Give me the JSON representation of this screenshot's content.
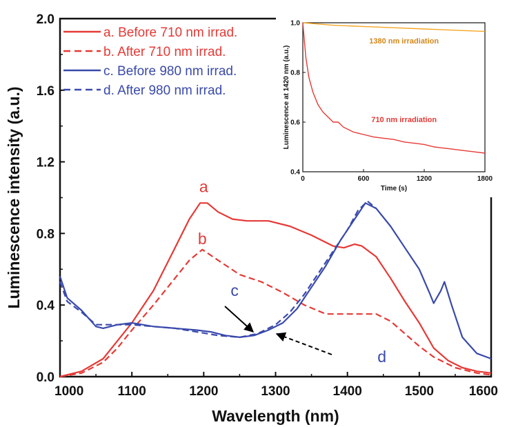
{
  "colors": {
    "red": "#e53935",
    "blue": "#3949ab",
    "orange": "#f5a623",
    "axis": "#111111"
  },
  "chart_data": [
    {
      "type": "line",
      "xlabel": "Wavelength (nm)",
      "ylabel": "Luminescence intensity (a.u.)",
      "xlim": [
        1000,
        1600
      ],
      "ylim": [
        0,
        2.0
      ],
      "x_ticks": [
        "1000",
        "1100",
        "1200",
        "1300",
        "1400",
        "1500",
        "1600"
      ],
      "y_ticks": [
        "0.0",
        "0.4",
        "0.8",
        "1.2",
        "1.6",
        "2.0"
      ],
      "legend_position": "top-left",
      "series": [
        {
          "name": "a. Before 710 nm irrad.",
          "color": "red",
          "dash": "solid",
          "points": [
            [
              1000,
              0.0
            ],
            [
              1030,
              0.03
            ],
            [
              1060,
              0.1
            ],
            [
              1080,
              0.2
            ],
            [
              1100,
              0.3
            ],
            [
              1130,
              0.48
            ],
            [
              1160,
              0.72
            ],
            [
              1180,
              0.88
            ],
            [
              1195,
              0.97
            ],
            [
              1205,
              0.97
            ],
            [
              1220,
              0.92
            ],
            [
              1240,
              0.88
            ],
            [
              1260,
              0.87
            ],
            [
              1290,
              0.87
            ],
            [
              1320,
              0.84
            ],
            [
              1350,
              0.79
            ],
            [
              1380,
              0.73
            ],
            [
              1395,
              0.72
            ],
            [
              1410,
              0.74
            ],
            [
              1420,
              0.73
            ],
            [
              1440,
              0.67
            ],
            [
              1460,
              0.55
            ],
            [
              1480,
              0.42
            ],
            [
              1500,
              0.3
            ],
            [
              1520,
              0.16
            ],
            [
              1540,
              0.09
            ],
            [
              1560,
              0.05
            ],
            [
              1580,
              0.03
            ],
            [
              1600,
              0.02
            ]
          ]
        },
        {
          "name": "b. After 710 nm irrad.",
          "color": "red",
          "dash": "dashed",
          "points": [
            [
              1000,
              0.0
            ],
            [
              1030,
              0.02
            ],
            [
              1060,
              0.08
            ],
            [
              1080,
              0.16
            ],
            [
              1100,
              0.26
            ],
            [
              1130,
              0.4
            ],
            [
              1160,
              0.55
            ],
            [
              1180,
              0.65
            ],
            [
              1198,
              0.71
            ],
            [
              1220,
              0.65
            ],
            [
              1250,
              0.57
            ],
            [
              1280,
              0.53
            ],
            [
              1310,
              0.47
            ],
            [
              1340,
              0.4
            ],
            [
              1370,
              0.35
            ],
            [
              1400,
              0.35
            ],
            [
              1420,
              0.35
            ],
            [
              1440,
              0.35
            ],
            [
              1460,
              0.31
            ],
            [
              1480,
              0.24
            ],
            [
              1500,
              0.17
            ],
            [
              1520,
              0.11
            ],
            [
              1550,
              0.05
            ],
            [
              1580,
              0.02
            ],
            [
              1600,
              0.01
            ]
          ]
        },
        {
          "name": "c. Before 980 nm irrad.",
          "color": "blue",
          "dash": "solid",
          "points": [
            [
              1000,
              0.56
            ],
            [
              1010,
              0.44
            ],
            [
              1030,
              0.37
            ],
            [
              1050,
              0.28
            ],
            [
              1060,
              0.27
            ],
            [
              1080,
              0.29
            ],
            [
              1100,
              0.3
            ],
            [
              1130,
              0.28
            ],
            [
              1160,
              0.27
            ],
            [
              1190,
              0.26
            ],
            [
              1210,
              0.25
            ],
            [
              1230,
              0.23
            ],
            [
              1250,
              0.22
            ],
            [
              1270,
              0.23
            ],
            [
              1290,
              0.26
            ],
            [
              1310,
              0.3
            ],
            [
              1330,
              0.38
            ],
            [
              1350,
              0.5
            ],
            [
              1370,
              0.62
            ],
            [
              1390,
              0.76
            ],
            [
              1410,
              0.88
            ],
            [
              1425,
              0.97
            ],
            [
              1440,
              0.94
            ],
            [
              1460,
              0.84
            ],
            [
              1480,
              0.72
            ],
            [
              1500,
              0.6
            ],
            [
              1515,
              0.46
            ],
            [
              1520,
              0.41
            ],
            [
              1530,
              0.48
            ],
            [
              1535,
              0.53
            ],
            [
              1545,
              0.4
            ],
            [
              1560,
              0.22
            ],
            [
              1580,
              0.13
            ],
            [
              1600,
              0.1
            ]
          ]
        },
        {
          "name": "d. After 980 nm irrad.",
          "color": "blue",
          "dash": "dashed",
          "points": [
            [
              1000,
              0.53
            ],
            [
              1010,
              0.42
            ],
            [
              1030,
              0.36
            ],
            [
              1050,
              0.29
            ],
            [
              1070,
              0.29
            ],
            [
              1100,
              0.29
            ],
            [
              1130,
              0.28
            ],
            [
              1160,
              0.27
            ],
            [
              1190,
              0.25
            ],
            [
              1220,
              0.23
            ],
            [
              1250,
              0.22
            ],
            [
              1275,
              0.24
            ],
            [
              1300,
              0.29
            ],
            [
              1320,
              0.36
            ],
            [
              1340,
              0.46
            ],
            [
              1360,
              0.58
            ],
            [
              1380,
              0.7
            ],
            [
              1400,
              0.82
            ],
            [
              1415,
              0.93
            ],
            [
              1428,
              0.98
            ],
            [
              1440,
              0.94
            ]
          ]
        }
      ],
      "annotations": [
        {
          "text": "a",
          "x": 1200,
          "y": 1.03,
          "color": "red"
        },
        {
          "text": "b",
          "x": 1198,
          "y": 0.74,
          "color": "red"
        },
        {
          "text": "c",
          "x": 1243,
          "y": 0.45,
          "color": "blue"
        },
        {
          "text": "d",
          "x": 1448,
          "y": 0.08,
          "color": "blue"
        }
      ]
    },
    {
      "type": "line",
      "position": "top-right inset",
      "xlabel": "Time (s)",
      "ylabel": "Luminescence at 1420 nm (a.u.)",
      "xlim": [
        0,
        1800
      ],
      "ylim": [
        0.4,
        1.0
      ],
      "x_ticks": [
        "0",
        "600",
        "1200",
        "1800"
      ],
      "y_ticks": [
        "0.4",
        "0.6",
        "0.8",
        "1.0"
      ],
      "series": [
        {
          "label": "1380 nm irradiation",
          "color": "orange",
          "points": [
            [
              0,
              1.0
            ],
            [
              300,
              0.99
            ],
            [
              600,
              0.985
            ],
            [
              900,
              0.98
            ],
            [
              1200,
              0.975
            ],
            [
              1500,
              0.97
            ],
            [
              1800,
              0.965
            ]
          ]
        },
        {
          "label": "710 nm irradiation",
          "color": "red",
          "points": [
            [
              0,
              1.0
            ],
            [
              30,
              0.86
            ],
            [
              60,
              0.78
            ],
            [
              100,
              0.72
            ],
            [
              150,
              0.67
            ],
            [
              200,
              0.64
            ],
            [
              250,
              0.62
            ],
            [
              300,
              0.6
            ],
            [
              350,
              0.6
            ],
            [
              400,
              0.58
            ],
            [
              450,
              0.57
            ],
            [
              500,
              0.56
            ],
            [
              550,
              0.555
            ],
            [
              600,
              0.55
            ],
            [
              700,
              0.54
            ],
            [
              800,
              0.535
            ],
            [
              900,
              0.53
            ],
            [
              1000,
              0.52
            ],
            [
              1100,
              0.515
            ],
            [
              1200,
              0.51
            ],
            [
              1300,
              0.5
            ],
            [
              1400,
              0.495
            ],
            [
              1500,
              0.49
            ],
            [
              1600,
              0.485
            ],
            [
              1700,
              0.48
            ],
            [
              1800,
              0.475
            ]
          ]
        }
      ]
    }
  ]
}
